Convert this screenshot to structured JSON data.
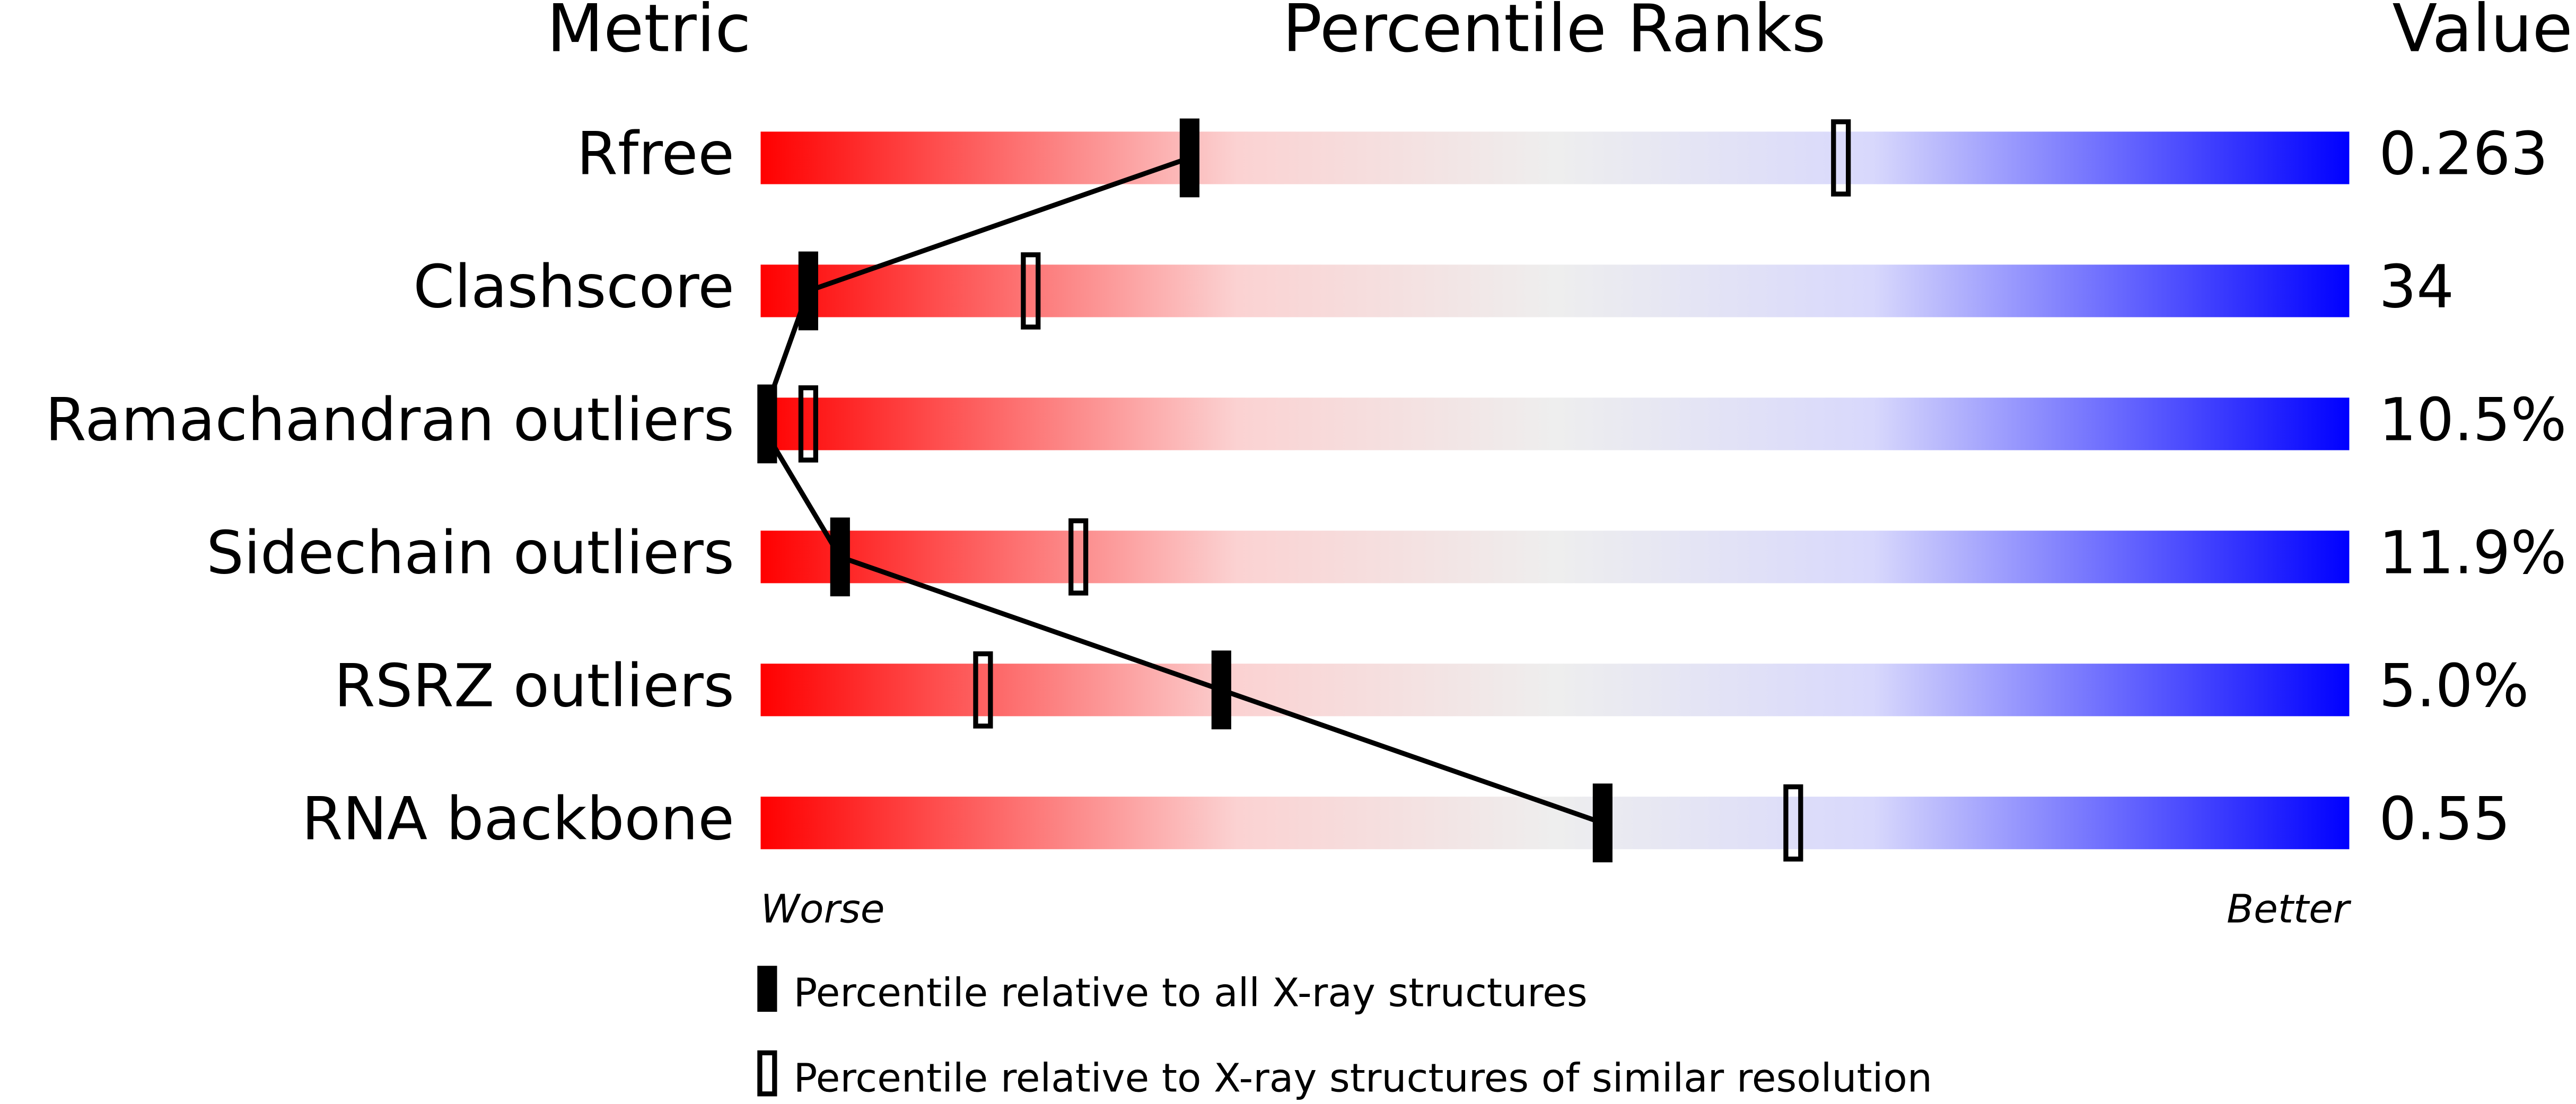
{
  "chart_data": {
    "type": "slider",
    "title": "Percentile Ranks",
    "category_header": "Metric",
    "value_header": "Value",
    "categories": [
      "Rfree",
      "Clashscore",
      "Ramachandran outliers",
      "Sidechain outliers",
      "RSRZ outliers",
      "RNA backbone"
    ],
    "value_texts": [
      "0.263",
      "34",
      "10.5%",
      "11.9%",
      "5.0%",
      "0.55"
    ],
    "series": [
      {
        "name": "Percentile relative to all X-ray structures",
        "color": "#000000",
        "values": [
          27,
          3,
          0,
          5,
          29,
          53
        ]
      },
      {
        "name": "Percentile relative to X-ray structures of similar resolution",
        "color": "#000000",
        "values": [
          68,
          17,
          3,
          20,
          14,
          65
        ]
      }
    ],
    "xlim": [
      0,
      100
    ],
    "worse_label": "Worse",
    "better_label": "Better"
  }
}
